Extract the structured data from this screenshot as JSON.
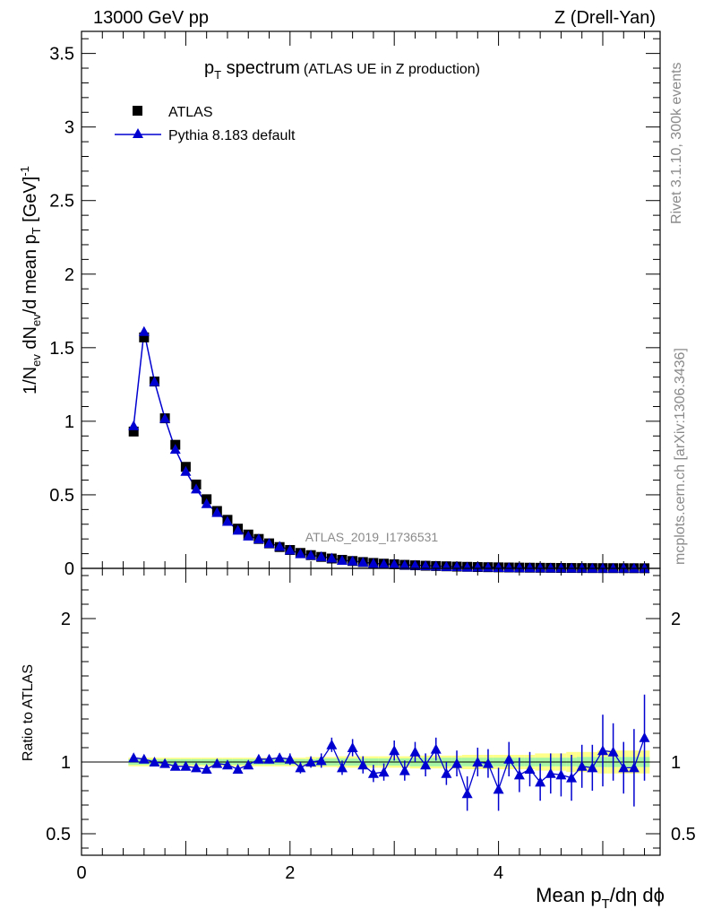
{
  "header": {
    "energy_label": "13000 GeV pp",
    "process_label": "Z (Drell-Yan)"
  },
  "side_labels": {
    "rivet": "Rivet 3.1.10,  300k events",
    "mcplots": "mcplots.cern.ch [arXiv:1306.3436]"
  },
  "chart_data": [
    {
      "type": "scatter",
      "panel": "main",
      "title_main": "p",
      "title_sub": "T",
      "title_rest": " spectrum",
      "title_note": "(ATLAS UE in Z production)",
      "analysis_id": "ATLAS_2019_I1736531",
      "ylabel": "1/N_ev dN_ev/d mean p_T [GeV]^-1",
      "ylim": [
        0,
        3.65
      ],
      "xlim": [
        0,
        5.55
      ],
      "y_ticks": [
        0,
        0.5,
        1,
        1.5,
        2,
        2.5,
        3,
        3.5
      ],
      "y_tick_labels": [
        "0",
        "0.5",
        "1",
        "1.5",
        "2",
        "2.5",
        "3",
        "3.5"
      ],
      "legend": [
        {
          "label": "ATLAS",
          "marker": "square",
          "color": "#000000"
        },
        {
          "label": "Pythia 8.183 default",
          "marker": "triangle",
          "color": "#0000d0"
        }
      ],
      "x": [
        0.5,
        0.6,
        0.7,
        0.8,
        0.9,
        1.0,
        1.1,
        1.2,
        1.3,
        1.4,
        1.5,
        1.6,
        1.7,
        1.8,
        1.9,
        2.0,
        2.1,
        2.2,
        2.3,
        2.4,
        2.5,
        2.6,
        2.7,
        2.8,
        2.9,
        3.0,
        3.1,
        3.2,
        3.3,
        3.4,
        3.5,
        3.6,
        3.7,
        3.8,
        3.9,
        4.0,
        4.1,
        4.2,
        4.3,
        4.4,
        4.5,
        4.6,
        4.7,
        4.8,
        4.9,
        5.0,
        5.1,
        5.2,
        5.3,
        5.4
      ],
      "series": [
        {
          "name": "ATLAS",
          "values": [
            0.93,
            1.57,
            1.27,
            1.02,
            0.84,
            0.69,
            0.57,
            0.47,
            0.39,
            0.33,
            0.27,
            0.23,
            0.2,
            0.17,
            0.145,
            0.125,
            0.105,
            0.09,
            0.078,
            0.067,
            0.058,
            0.05,
            0.043,
            0.037,
            0.032,
            0.028,
            0.024,
            0.021,
            0.018,
            0.016,
            0.014,
            0.012,
            0.0105,
            0.009,
            0.008,
            0.007,
            0.006,
            0.0053,
            0.0046,
            0.004,
            0.0035,
            0.003,
            0.0027,
            0.0023,
            0.002,
            0.0018,
            0.0016,
            0.0014,
            0.0012,
            0.001
          ]
        },
        {
          "name": "Pythia 8.183 default",
          "values": [
            0.97,
            1.61,
            1.27,
            1.02,
            0.81,
            0.66,
            0.54,
            0.44,
            0.38,
            0.32,
            0.26,
            0.22,
            0.2,
            0.17,
            0.15,
            0.125,
            0.1,
            0.09,
            0.08,
            0.07,
            0.055,
            0.05,
            0.042,
            0.034,
            0.03,
            0.028,
            0.023,
            0.021,
            0.018,
            0.016,
            0.013,
            0.012,
            0.009,
            0.009,
            0.008,
            0.006,
            0.0056,
            0.0048,
            0.0046,
            0.0035,
            0.0032,
            0.0027,
            0.0024,
            0.002,
            0.0019,
            0.0019,
            0.0017,
            0.0013,
            0.0012,
            0.0012
          ]
        }
      ]
    },
    {
      "type": "scatter",
      "panel": "ratio",
      "ylabel": "Ratio to ATLAS",
      "xlabel_main": "Mean p",
      "xlabel_sub": "T",
      "xlabel_rest": "/dη dϕ",
      "xlim": [
        0,
        5.55
      ],
      "ylim": [
        0.35,
        2.35
      ],
      "x_ticks": [
        0,
        2,
        4
      ],
      "x_tick_labels": [
        "0",
        "2",
        "4"
      ],
      "y_ticks": [
        0.5,
        1,
        2
      ],
      "y_tick_labels": [
        "0.5",
        "1",
        "2"
      ],
      "x": [
        0.5,
        0.6,
        0.7,
        0.8,
        0.9,
        1.0,
        1.1,
        1.2,
        1.3,
        1.4,
        1.5,
        1.6,
        1.7,
        1.8,
        1.9,
        2.0,
        2.1,
        2.2,
        2.3,
        2.4,
        2.5,
        2.6,
        2.7,
        2.8,
        2.9,
        3.0,
        3.1,
        3.2,
        3.3,
        3.4,
        3.5,
        3.6,
        3.7,
        3.8,
        3.9,
        4.0,
        4.1,
        4.2,
        4.3,
        4.4,
        4.5,
        4.6,
        4.7,
        4.8,
        4.9,
        5.0,
        5.1,
        5.2,
        5.3,
        5.4
      ],
      "series": [
        {
          "name": "Pythia 8.183 default",
          "values": [
            1.03,
            1.02,
            1.0,
            0.99,
            0.97,
            0.97,
            0.96,
            0.95,
            0.99,
            0.98,
            0.95,
            0.98,
            1.02,
            1.02,
            1.03,
            1.02,
            0.96,
            1.0,
            1.01,
            1.12,
            0.96,
            1.1,
            0.98,
            0.92,
            0.93,
            1.08,
            0.94,
            1.07,
            0.98,
            1.09,
            0.92,
            0.99,
            0.78,
            1.0,
            0.99,
            0.81,
            1.02,
            0.91,
            0.95,
            0.86,
            0.92,
            0.91,
            0.89,
            0.97,
            0.96,
            1.08,
            1.07,
            0.96,
            0.96,
            1.17
          ],
          "errors": [
            0.01,
            0.01,
            0.01,
            0.01,
            0.01,
            0.01,
            0.01,
            0.01,
            0.01,
            0.02,
            0.02,
            0.02,
            0.03,
            0.03,
            0.03,
            0.04,
            0.04,
            0.04,
            0.05,
            0.05,
            0.05,
            0.06,
            0.06,
            0.06,
            0.06,
            0.07,
            0.07,
            0.07,
            0.08,
            0.08,
            0.08,
            0.09,
            0.12,
            0.1,
            0.1,
            0.15,
            0.12,
            0.12,
            0.12,
            0.13,
            0.14,
            0.15,
            0.16,
            0.15,
            0.16,
            0.25,
            0.2,
            0.18,
            0.27,
            0.3
          ]
        },
        {
          "name": "ATLAS uncertainty (inner)",
          "values": [
            0.02,
            0.02,
            0.02,
            0.02,
            0.02,
            0.02,
            0.02,
            0.02,
            0.02,
            0.02,
            0.02,
            0.02,
            0.02,
            0.02,
            0.02,
            0.02,
            0.02,
            0.02,
            0.025,
            0.025,
            0.025,
            0.025,
            0.025,
            0.025,
            0.025,
            0.025,
            0.025,
            0.03,
            0.03,
            0.03,
            0.03,
            0.03,
            0.03,
            0.03,
            0.03,
            0.03,
            0.03,
            0.03,
            0.03,
            0.03,
            0.03,
            0.03,
            0.03,
            0.035,
            0.035,
            0.035,
            0.035,
            0.035,
            0.035,
            0.035
          ]
        },
        {
          "name": "ATLAS uncertainty (outer)",
          "values": [
            0.03,
            0.03,
            0.03,
            0.03,
            0.03,
            0.03,
            0.03,
            0.03,
            0.03,
            0.03,
            0.03,
            0.03,
            0.03,
            0.03,
            0.03,
            0.03,
            0.03,
            0.035,
            0.035,
            0.035,
            0.04,
            0.04,
            0.04,
            0.04,
            0.04,
            0.04,
            0.04,
            0.045,
            0.045,
            0.045,
            0.045,
            0.045,
            0.05,
            0.05,
            0.05,
            0.05,
            0.05,
            0.05,
            0.05,
            0.06,
            0.06,
            0.06,
            0.07,
            0.07,
            0.07,
            0.08,
            0.08,
            0.08,
            0.08,
            0.08
          ]
        }
      ]
    }
  ],
  "colors": {
    "data": "#000000",
    "mc": "#0000d0",
    "band_inner": "#a5f5a5",
    "band_outer": "#ffff8a",
    "side_text": "#8a8a8a"
  }
}
